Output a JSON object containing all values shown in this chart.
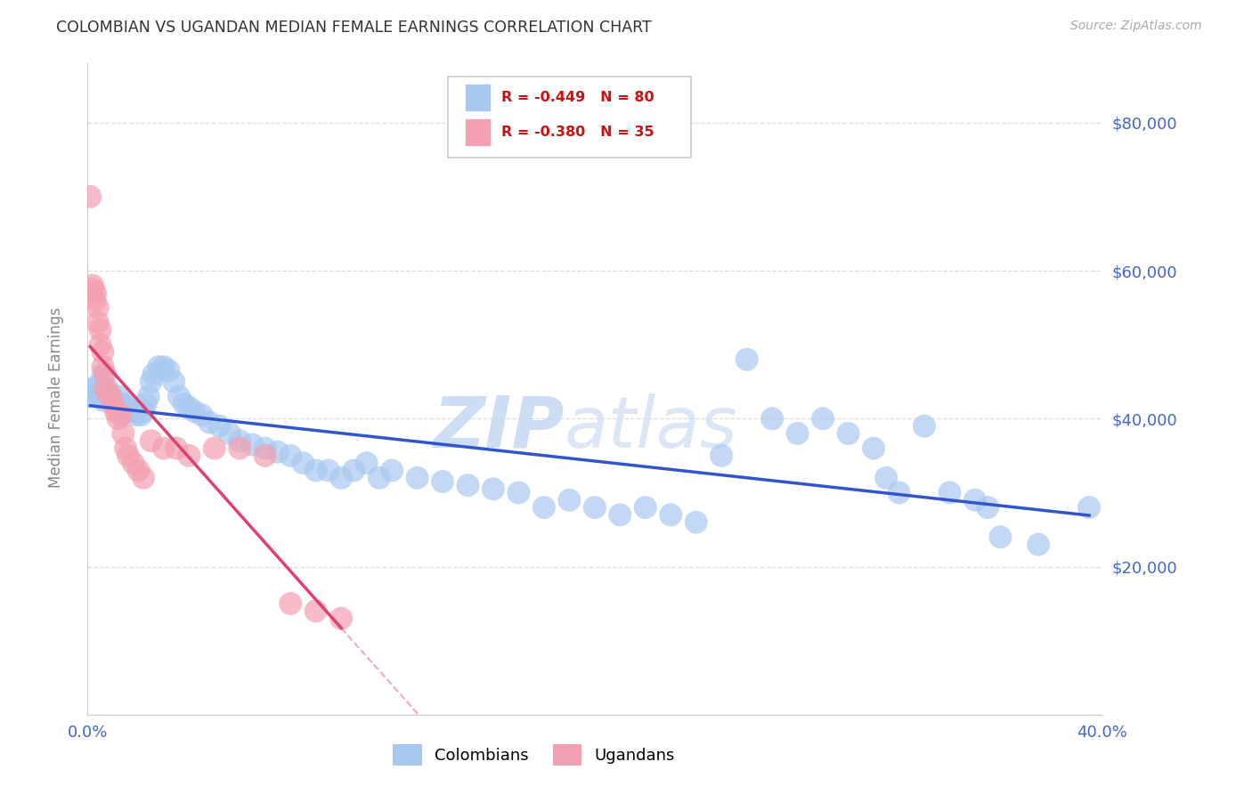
{
  "title": "COLOMBIAN VS UGANDAN MEDIAN FEMALE EARNINGS CORRELATION CHART",
  "source": "Source: ZipAtlas.com",
  "ylabel": "Median Female Earnings",
  "background_color": "#ffffff",
  "watermark": "ZIPatlas",
  "watermark_color": "#ccddf5",
  "axis_label_color": "#4466cc",
  "grid_color": "#dddddd",
  "xlim": [
    0.0,
    0.4
  ],
  "ylim": [
    0,
    88000
  ],
  "colombian_color": "#a8c8f0",
  "ugandan_color": "#f4a0b0",
  "line_blue_color": "#3355cc",
  "line_pink_color": "#e04070",
  "legend_R_blue": "R = -0.449",
  "legend_N_blue": "N = 80",
  "legend_R_pink": "R = -0.380",
  "legend_N_pink": "N = 35",
  "colombians_label": "Colombians",
  "ugandans_label": "Ugandans",
  "colombian_x": [
    0.001,
    0.002,
    0.003,
    0.004,
    0.005,
    0.006,
    0.006,
    0.007,
    0.008,
    0.009,
    0.01,
    0.011,
    0.012,
    0.013,
    0.014,
    0.015,
    0.016,
    0.017,
    0.018,
    0.019,
    0.02,
    0.021,
    0.022,
    0.023,
    0.024,
    0.025,
    0.026,
    0.028,
    0.03,
    0.032,
    0.034,
    0.036,
    0.038,
    0.04,
    0.042,
    0.045,
    0.048,
    0.052,
    0.056,
    0.06,
    0.065,
    0.07,
    0.075,
    0.08,
    0.085,
    0.09,
    0.095,
    0.1,
    0.105,
    0.11,
    0.115,
    0.12,
    0.13,
    0.14,
    0.15,
    0.16,
    0.17,
    0.18,
    0.19,
    0.2,
    0.21,
    0.22,
    0.23,
    0.24,
    0.25,
    0.26,
    0.27,
    0.28,
    0.29,
    0.3,
    0.31,
    0.315,
    0.32,
    0.33,
    0.34,
    0.35,
    0.355,
    0.36,
    0.375,
    0.395
  ],
  "colombian_y": [
    43000,
    44000,
    43500,
    44500,
    43000,
    42500,
    46000,
    43500,
    44000,
    43000,
    42000,
    42500,
    43000,
    42000,
    41500,
    42000,
    41000,
    41500,
    41000,
    40500,
    41000,
    40500,
    41000,
    42000,
    43000,
    45000,
    46000,
    47000,
    47000,
    46500,
    45000,
    43000,
    42000,
    41500,
    41000,
    40500,
    39500,
    39000,
    38000,
    37000,
    36500,
    36000,
    35500,
    35000,
    34000,
    33000,
    33000,
    32000,
    33000,
    34000,
    32000,
    33000,
    32000,
    31500,
    31000,
    30500,
    30000,
    28000,
    29000,
    28000,
    27000,
    28000,
    27000,
    26000,
    35000,
    48000,
    40000,
    38000,
    40000,
    38000,
    36000,
    32000,
    30000,
    39000,
    30000,
    29000,
    28000,
    24000,
    23000,
    28000
  ],
  "ugandan_x": [
    0.001,
    0.002,
    0.002,
    0.003,
    0.003,
    0.004,
    0.004,
    0.005,
    0.005,
    0.006,
    0.006,
    0.007,
    0.007,
    0.008,
    0.009,
    0.01,
    0.011,
    0.012,
    0.013,
    0.014,
    0.015,
    0.016,
    0.018,
    0.02,
    0.022,
    0.025,
    0.03,
    0.035,
    0.04,
    0.05,
    0.06,
    0.07,
    0.08,
    0.09,
    0.1
  ],
  "ugandan_y": [
    70000,
    58000,
    57500,
    57000,
    56000,
    55000,
    53000,
    52000,
    50000,
    49000,
    47000,
    46000,
    44000,
    43500,
    43000,
    42000,
    41000,
    40000,
    40500,
    38000,
    36000,
    35000,
    34000,
    33000,
    32000,
    37000,
    36000,
    36000,
    35000,
    36000,
    36000,
    35000,
    15000,
    14000,
    13000
  ]
}
